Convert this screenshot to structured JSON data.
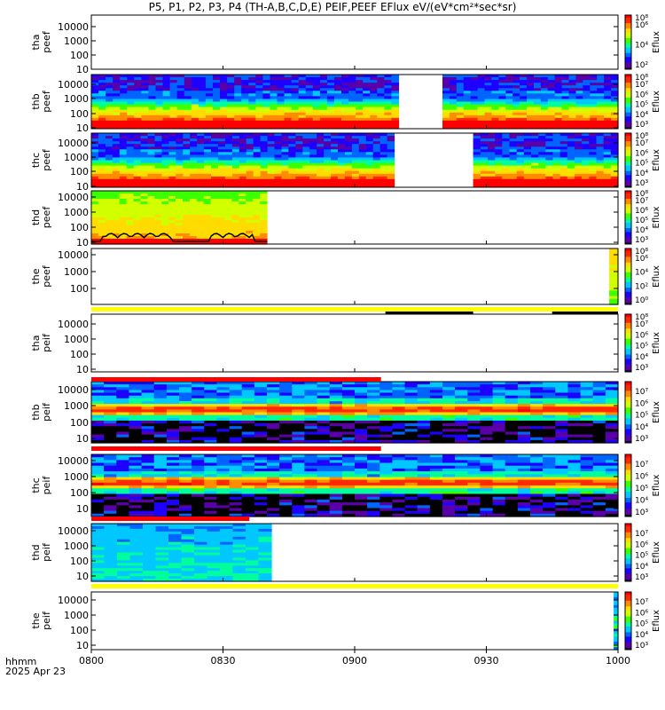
{
  "title": "P5, P1, P2, P3, P4 (TH-A,B,C,D,E) PEIF,PEEF EFlux eV/(eV*cm²*sec*sr)",
  "footer": {
    "time_format_label": "hhmm",
    "date_label": "2025 Apr 23"
  },
  "chart_data": {
    "type": "heatmap",
    "title": "P5, P1, P2, P3, P4 (TH-A,B,C,D,E) PEIF,PEEF EFlux eV/(eV*cm²*sec*sr)",
    "x_ticks": [
      "0800",
      "0830",
      "0900",
      "0930",
      "1000"
    ],
    "x_range": [
      "08:00",
      "10:00"
    ],
    "colormap": [
      "#000000",
      "#5a00a8",
      "#1e00ff",
      "#0064ff",
      "#00c8ff",
      "#00ff9c",
      "#3cff00",
      "#d2ff00",
      "#ffdc00",
      "#ff8c00",
      "#ff2800",
      "#ff0000"
    ],
    "colors": {
      "flag_yellow": "#ffff00",
      "flag_red": "#ff0000",
      "flag_black": "#000000",
      "curve": "#000000"
    },
    "panels": [
      {
        "id": "tha-peef",
        "ylabel": [
          "tha",
          "peef"
        ],
        "yticks": [
          "10",
          "100",
          "1000",
          "10000"
        ],
        "yscale": "log",
        "colorbar_label": "Eflux",
        "colorbar_ticks": [
          "10²",
          "10⁴",
          "10⁶"
        ],
        "colorbar_top": "10⁸",
        "data": "none",
        "flags": []
      },
      {
        "id": "thb-peef",
        "ylabel": [
          "thb",
          "peef"
        ],
        "yticks": [
          "10",
          "100",
          "1000",
          "10000"
        ],
        "yscale": "log",
        "colorbar_label": "Eflux",
        "colorbar_ticks": [
          "10³",
          "10⁴",
          "10⁵",
          "10⁶",
          "10⁷"
        ],
        "colorbar_top": "10⁸",
        "data_segments": [
          [
            "08:00",
            "09:10"
          ],
          [
            "09:20",
            "10:00"
          ]
        ],
        "flags": []
      },
      {
        "id": "thc-peef",
        "ylabel": [
          "thc",
          "peef"
        ],
        "yticks": [
          "10",
          "100",
          "1000",
          "10000"
        ],
        "yscale": "log",
        "colorbar_label": "Eflux",
        "colorbar_ticks": [
          "10³",
          "10⁴",
          "10⁵",
          "10⁶",
          "10⁷"
        ],
        "colorbar_top": "10⁸",
        "data_segments": [
          [
            "08:00",
            "09:09"
          ],
          [
            "09:27",
            "10:00"
          ]
        ],
        "flags": []
      },
      {
        "id": "thd-peef",
        "ylabel": [
          "thd",
          "peef"
        ],
        "yticks": [
          "10",
          "100",
          "1000",
          "10000"
        ],
        "yscale": "log",
        "colorbar_label": "Eflux",
        "colorbar_ticks": [
          "10³",
          "10⁴",
          "10⁵",
          "10⁶",
          "10⁷"
        ],
        "colorbar_top": "10⁸",
        "data_segments": [
          [
            "08:00",
            "08:40"
          ]
        ],
        "flags": []
      },
      {
        "id": "the-peef",
        "ylabel": [
          "the",
          "peef"
        ],
        "yticks": [
          "100",
          "1000",
          "10000"
        ],
        "yscale": "log",
        "colorbar_label": "Eflux",
        "colorbar_ticks": [
          "10⁰",
          "10²",
          "10⁴",
          "10⁶"
        ],
        "colorbar_top": "10⁸",
        "data_segments": [
          [
            "09:58",
            "10:00"
          ]
        ],
        "flags": [
          {
            "color": "yellow",
            "segments": [
              [
                "08:00",
                "10:00"
              ]
            ]
          },
          {
            "color": "black",
            "segments": [
              [
                "09:07",
                "09:27"
              ],
              [
                "09:45",
                "10:00"
              ]
            ]
          }
        ]
      },
      {
        "id": "tha-peif",
        "ylabel": [
          "tha",
          "peif"
        ],
        "yticks": [
          "10",
          "100",
          "1000",
          "10000"
        ],
        "yscale": "log",
        "colorbar_label": "Eflux",
        "colorbar_ticks": [
          "10³",
          "10⁴",
          "10⁵",
          "10⁶",
          "10⁷"
        ],
        "colorbar_top": "10⁸",
        "data": "none",
        "flags": []
      },
      {
        "id": "thb-peif",
        "ylabel": [
          "thb",
          "peif"
        ],
        "yticks": [
          "10",
          "100",
          "1000",
          "10000"
        ],
        "yscale": "log",
        "colorbar_label": "Eflux",
        "colorbar_ticks": [
          "10³",
          "10⁴",
          "10⁵",
          "10⁶",
          "10⁷"
        ],
        "data_segments": [
          [
            "08:00",
            "10:00"
          ]
        ],
        "flags": [
          {
            "color": "red",
            "segments": [
              [
                "08:00",
                "09:06"
              ]
            ]
          },
          {
            "color": "yellow",
            "segments": [
              [
                "09:06",
                "10:00"
              ]
            ]
          }
        ]
      },
      {
        "id": "thc-peif",
        "ylabel": [
          "thc",
          "peif"
        ],
        "yticks": [
          "10",
          "100",
          "1000",
          "10000"
        ],
        "yscale": "log",
        "colorbar_label": "Eflux",
        "colorbar_ticks": [
          "10³",
          "10⁴",
          "10⁵",
          "10⁶",
          "10⁷"
        ],
        "data_segments": [
          [
            "08:00",
            "10:00"
          ]
        ],
        "flags": [
          {
            "color": "red",
            "segments": [
              [
                "08:00",
                "09:06"
              ]
            ]
          },
          {
            "color": "yellow",
            "segments": [
              [
                "09:06",
                "10:00"
              ]
            ]
          }
        ]
      },
      {
        "id": "thd-peif",
        "ylabel": [
          "thd",
          "peif"
        ],
        "yticks": [
          "10",
          "100",
          "1000",
          "10000"
        ],
        "yscale": "log",
        "colorbar_label": "Eflux",
        "colorbar_ticks": [
          "10³",
          "10⁴",
          "10⁵",
          "10⁶",
          "10⁷"
        ],
        "data_segments": [
          [
            "08:00",
            "08:41"
          ]
        ],
        "flags": [
          {
            "color": "red",
            "segments": [
              [
                "08:00",
                "08:36"
              ]
            ]
          },
          {
            "color": "yellow",
            "segments": [
              [
                "08:36",
                "10:00"
              ]
            ]
          }
        ]
      },
      {
        "id": "the-peif",
        "ylabel": [
          "the",
          "peif"
        ],
        "yticks": [
          "10",
          "100",
          "1000",
          "10000"
        ],
        "yscale": "log",
        "colorbar_label": "Eflux",
        "colorbar_ticks": [
          "10³",
          "10⁴",
          "10⁵",
          "10⁶",
          "10⁷"
        ],
        "data_segments": [
          [
            "09:59",
            "10:00"
          ]
        ],
        "flags": [
          {
            "color": "yellow",
            "segments": [
              [
                "08:00",
                "10:00"
              ]
            ]
          }
        ]
      }
    ]
  }
}
